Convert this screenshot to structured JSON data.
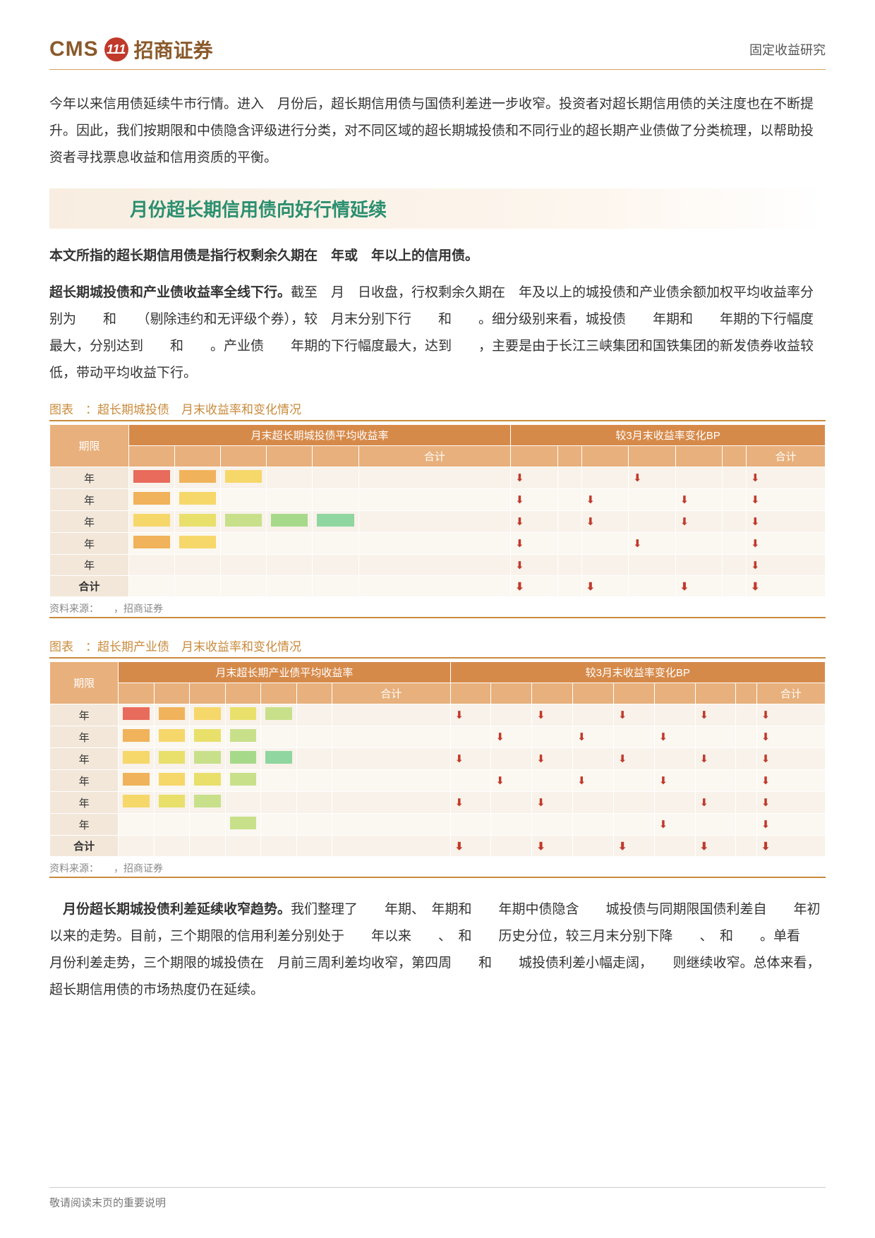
{
  "header": {
    "logo_cms": "CMS",
    "logo_circle": "111",
    "logo_cn": "招商证券",
    "right": "固定收益研究"
  },
  "intro": "今年以来信用债延续牛市行情。进入　月份后，超长期信用债与国债利差进一步收窄。投资者对超长期信用债的关注度也在不断提升。因此，我们按期限和中债隐含评级进行分类，对不同区域的超长期城投债和不同行业的超长期产业债做了分类梳理，以帮助投资者寻找票息收益和信用资质的平衡。",
  "section_title": "月份超长期信用债向好行情延续",
  "sub1": "本文所指的超长期信用债是指行权剩余久期在　年或　年以上的信用债。",
  "para1_bold": "超长期城投债和产业债收益率全线下行。",
  "para1_rest": "截至　月　日收盘，行权剩余久期在　年及以上的城投债和产业债余额加权平均收益率分别为　　和　　（剔除违约和无评级个券），较　月末分别下行　　和　　。细分级别来看，城投债　　年期和　　年期的下行幅度最大，分别达到　　和　　。产业债　　年期的下行幅度最大，达到　　，主要是由于长江三峡集团和国铁集团的新发债券收益较低，带动平均收益下行。",
  "table1": {
    "caption": "图表　：超长期城投债　月末收益率和变化情况",
    "head_group_left": "月末超长期城投债平均收益率",
    "head_group_right": "较3月末收益率变化BP",
    "col_term": "期限",
    "col_total": "合计",
    "rows": [
      "年",
      "年",
      "年",
      "年",
      "年",
      "合计"
    ],
    "heat_colors": [
      [
        "#e86b5c",
        "#f0b25a",
        "#f6d76a",
        "",
        ""
      ],
      [
        "#f0b25a",
        "#f6d76a",
        "",
        "",
        ""
      ],
      [
        "#f6d76a",
        "#e8e06a",
        "#c8e08a",
        "#a7d98a",
        "#8fd6a0"
      ],
      [
        "#f0b25a",
        "#f6d76a",
        "",
        "",
        ""
      ],
      [
        "",
        "",
        "",
        "",
        ""
      ],
      [
        "",
        "",
        "",
        "",
        ""
      ]
    ],
    "downs": [
      [
        true,
        false,
        false,
        true,
        false,
        false,
        true
      ],
      [
        true,
        false,
        true,
        false,
        true,
        false,
        true
      ],
      [
        true,
        false,
        true,
        false,
        true,
        false,
        true
      ],
      [
        true,
        false,
        false,
        true,
        false,
        false,
        true
      ],
      [
        true,
        false,
        false,
        false,
        false,
        false,
        true
      ],
      [
        true,
        false,
        true,
        false,
        true,
        false,
        true
      ]
    ],
    "source": "资料来源：　　，招商证券"
  },
  "table2": {
    "caption": "图表　：超长期产业债　月末收益率和变化情况",
    "head_group_left": "月末超长期产业债平均收益率",
    "head_group_right": "较3月末收益率变化BP",
    "col_term": "期限",
    "col_total": "合计",
    "rows": [
      "年",
      "年",
      "年",
      "年",
      "年",
      "年",
      "合计"
    ],
    "heat_colors": [
      [
        "#e86b5c",
        "#f0b25a",
        "#f6d76a",
        "#e8e06a",
        "#c8e08a",
        ""
      ],
      [
        "#f0b25a",
        "#f6d76a",
        "#e8e06a",
        "#c8e08a",
        "",
        ""
      ],
      [
        "#f6d76a",
        "#e8e06a",
        "#c8e08a",
        "#a7d98a",
        "#8fd6a0",
        ""
      ],
      [
        "#f0b25a",
        "#f6d76a",
        "#e8e06a",
        "#c8e08a",
        "",
        ""
      ],
      [
        "#f6d76a",
        "#e8e06a",
        "#c8e08a",
        "",
        "",
        ""
      ],
      [
        "",
        "",
        "",
        "#c8e08a",
        "",
        ""
      ],
      [
        "",
        "",
        "",
        "",
        "",
        ""
      ]
    ],
    "downs": [
      [
        true,
        false,
        true,
        false,
        true,
        false,
        true,
        false,
        true
      ],
      [
        false,
        true,
        false,
        true,
        false,
        true,
        false,
        false,
        true
      ],
      [
        true,
        false,
        true,
        false,
        true,
        false,
        true,
        false,
        true
      ],
      [
        false,
        true,
        false,
        true,
        false,
        true,
        false,
        false,
        true
      ],
      [
        true,
        false,
        true,
        false,
        false,
        false,
        true,
        false,
        true
      ],
      [
        false,
        false,
        false,
        false,
        false,
        true,
        false,
        false,
        true
      ],
      [
        true,
        false,
        true,
        false,
        true,
        false,
        true,
        false,
        true
      ]
    ],
    "source": "资料来源：　　，招商证券"
  },
  "para2_bold": "　月份超长期城投债利差延续收窄趋势。",
  "para2_rest": "我们整理了　　年期、　年期和　　年期中债隐含　　城投债与同期限国债利差自　　年初以来的走势。目前，三个期限的信用利差分别处于　　年以来　　、　和　　历史分位，较三月末分别下降　　、　和　　。单看　月份利差走势，三个期限的城投债在　月前三周利差均收窄，第四周　　和　　城投债利差小幅走阔，　　则继续收窄。总体来看，超长期信用债的市场热度仍在延续。",
  "footer": "敬请阅读末页的重要说明"
}
